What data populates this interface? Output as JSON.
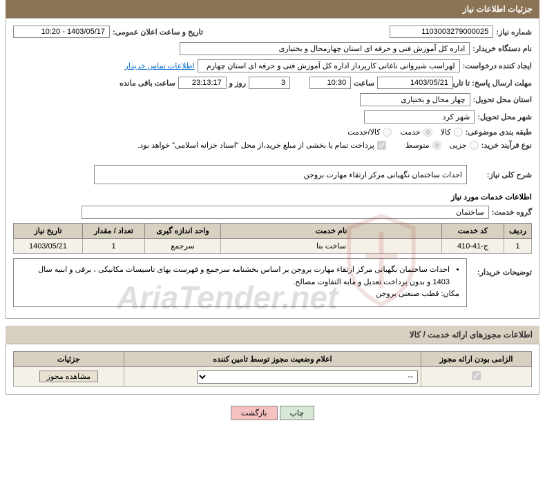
{
  "header": {
    "title": "جزئیات اطلاعات نیاز"
  },
  "need": {
    "number_label": "شماره نیاز:",
    "number": "1103003279000025",
    "announce_label": "تاریخ و ساعت اعلان عمومی:",
    "announce_value": "1403/05/17 - 10:20",
    "buyer_org_label": "نام دستگاه خریدار:",
    "buyer_org": "اداره کل آموزش فنی و حرفه ای استان چهارمحال و بختیاری",
    "requester_label": "ایجاد کننده درخواست:",
    "requester": "لهراسب شیروانی ناغانی کارپرداز اداره کل آموزش فنی و حرفه ای استان چهارم",
    "contact_link": "اطلاعات تماس خریدار",
    "deadline_label": "مهلت ارسال پاسخ: تا تاریخ:",
    "deadline_date": "1403/05/21",
    "time_label": "ساعت",
    "deadline_time": "10:30",
    "remaining_days": "3",
    "days_and": "روز و",
    "remaining_time": "23:13:17",
    "remaining_label": "ساعت باقی مانده",
    "delivery_province_label": "استان محل تحویل:",
    "delivery_province": "چهار محال و بختیاری",
    "delivery_city_label": "شهر محل تحویل:",
    "delivery_city": "شهر کرد",
    "category_label": "طبقه بندی موضوعی:",
    "cat_goods": "کالا",
    "cat_service": "خدمت",
    "cat_both": "کالا/خدمت",
    "cat_selected": "service",
    "purchase_type_label": "نوع فرآیند خرید:",
    "pt_small": "جزیی",
    "pt_medium": "متوسط",
    "pt_selected": "medium",
    "payment_note": "پرداخت تمام یا بخشی از مبلغ خرید،از محل \"اسناد خزانه اسلامی\" خواهد بود.",
    "desc_label": "شرح کلی نیاز:",
    "desc_value": "احداث ساختمان نگهبانی مرکز ارتقاء مهارت بروجن"
  },
  "services": {
    "header": "اطلاعات خدمات مورد نیاز",
    "group_label": "گروه خدمت:",
    "group_value": "ساختمان",
    "cols": {
      "row": "ردیف",
      "code": "کد خدمت",
      "name": "نام خدمت",
      "unit": "واحد اندازه گیری",
      "qty": "تعداد / مقدار",
      "date": "تاریخ نیاز"
    },
    "rows": [
      {
        "row": "1",
        "code": "ج-41-410",
        "name": "ساخت بنا",
        "unit": "سرجمع",
        "qty": "1",
        "date": "1403/05/21"
      }
    ],
    "buyer_notes_label": "توضیحات خریدار:",
    "buyer_notes": [
      "احداث ساختمان نگهبانی مرکز ارتقاء مهارت بروجن بر اساس بخشنامه سرجمع و فهرست بهای تاسیسات مکانیکی ، برقی و ابنیه سال 1403  و بدون پرداخت تعدیل و مابه التفاوت مصالح.",
      "مکان: قطب صنعتی بروجن"
    ]
  },
  "license": {
    "header": "اطلاعات مجوزهای ارائه خدمت / کالا",
    "cols": {
      "mandatory": "الزامی بودن ارائه مجوز",
      "status": "اعلام وضعیت مجوز توسط تامین کننده",
      "details": "جزئیات"
    },
    "status_options": [
      "--"
    ],
    "view_btn": "مشاهده مجوز"
  },
  "footer": {
    "print": "چاپ",
    "back": "بازگشت"
  },
  "watermark": {
    "text": "AriaTender.net"
  },
  "colors": {
    "header_bg": "#8b7355",
    "th_bg": "#d8d0c0",
    "td_bg": "#f5f0e8"
  }
}
